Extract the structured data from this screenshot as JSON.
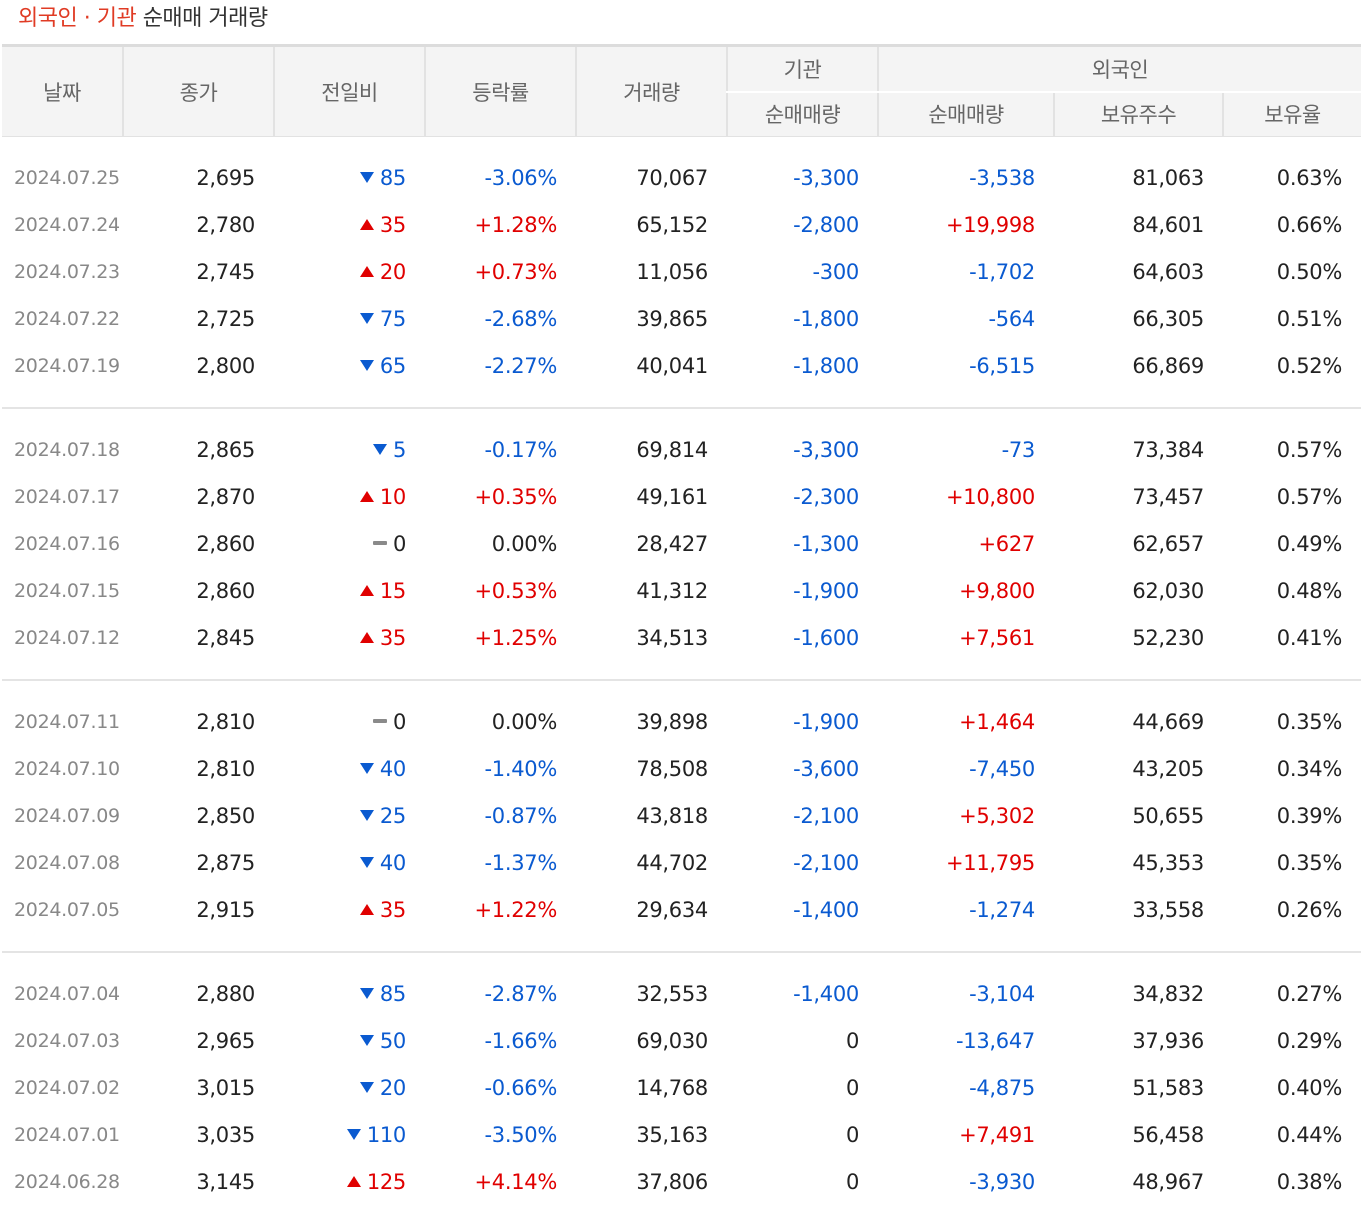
{
  "title": {
    "highlight": "외국인 · 기관",
    "rest": "순매매 거래량"
  },
  "headers": {
    "date": "날짜",
    "close": "종가",
    "change": "전일비",
    "rate": "등락률",
    "volume": "거래량",
    "inst_group": "기관",
    "inst_net": "순매매량",
    "foreign_group": "외국인",
    "foreign_net": "순매매량",
    "foreign_holding": "보유주수",
    "foreign_ratio": "보유율"
  },
  "colors": {
    "up": "#e00000",
    "down": "#0a5ad0",
    "flat": "#8a8a8a"
  },
  "groups": [
    {
      "rows": [
        {
          "date": "2024.07.25",
          "close": "2,695",
          "dir": "down",
          "change": "85",
          "rate": "-3.06%",
          "volume": "70,067",
          "inst": "-3,300",
          "foreign": "-3,538",
          "holding": "81,063",
          "ratio": "0.63%"
        },
        {
          "date": "2024.07.24",
          "close": "2,780",
          "dir": "up",
          "change": "35",
          "rate": "+1.28%",
          "volume": "65,152",
          "inst": "-2,800",
          "foreign": "+19,998",
          "holding": "84,601",
          "ratio": "0.66%"
        },
        {
          "date": "2024.07.23",
          "close": "2,745",
          "dir": "up",
          "change": "20",
          "rate": "+0.73%",
          "volume": "11,056",
          "inst": "-300",
          "foreign": "-1,702",
          "holding": "64,603",
          "ratio": "0.50%"
        },
        {
          "date": "2024.07.22",
          "close": "2,725",
          "dir": "down",
          "change": "75",
          "rate": "-2.68%",
          "volume": "39,865",
          "inst": "-1,800",
          "foreign": "-564",
          "holding": "66,305",
          "ratio": "0.51%"
        },
        {
          "date": "2024.07.19",
          "close": "2,800",
          "dir": "down",
          "change": "65",
          "rate": "-2.27%",
          "volume": "40,041",
          "inst": "-1,800",
          "foreign": "-6,515",
          "holding": "66,869",
          "ratio": "0.52%"
        }
      ]
    },
    {
      "rows": [
        {
          "date": "2024.07.18",
          "close": "2,865",
          "dir": "down",
          "change": "5",
          "rate": "-0.17%",
          "volume": "69,814",
          "inst": "-3,300",
          "foreign": "-73",
          "holding": "73,384",
          "ratio": "0.57%"
        },
        {
          "date": "2024.07.17",
          "close": "2,870",
          "dir": "up",
          "change": "10",
          "rate": "+0.35%",
          "volume": "49,161",
          "inst": "-2,300",
          "foreign": "+10,800",
          "holding": "73,457",
          "ratio": "0.57%"
        },
        {
          "date": "2024.07.16",
          "close": "2,860",
          "dir": "flat",
          "change": "0",
          "rate": "0.00%",
          "volume": "28,427",
          "inst": "-1,300",
          "foreign": "+627",
          "holding": "62,657",
          "ratio": "0.49%"
        },
        {
          "date": "2024.07.15",
          "close": "2,860",
          "dir": "up",
          "change": "15",
          "rate": "+0.53%",
          "volume": "41,312",
          "inst": "-1,900",
          "foreign": "+9,800",
          "holding": "62,030",
          "ratio": "0.48%"
        },
        {
          "date": "2024.07.12",
          "close": "2,845",
          "dir": "up",
          "change": "35",
          "rate": "+1.25%",
          "volume": "34,513",
          "inst": "-1,600",
          "foreign": "+7,561",
          "holding": "52,230",
          "ratio": "0.41%"
        }
      ]
    },
    {
      "rows": [
        {
          "date": "2024.07.11",
          "close": "2,810",
          "dir": "flat",
          "change": "0",
          "rate": "0.00%",
          "volume": "39,898",
          "inst": "-1,900",
          "foreign": "+1,464",
          "holding": "44,669",
          "ratio": "0.35%"
        },
        {
          "date": "2024.07.10",
          "close": "2,810",
          "dir": "down",
          "change": "40",
          "rate": "-1.40%",
          "volume": "78,508",
          "inst": "-3,600",
          "foreign": "-7,450",
          "holding": "43,205",
          "ratio": "0.34%"
        },
        {
          "date": "2024.07.09",
          "close": "2,850",
          "dir": "down",
          "change": "25",
          "rate": "-0.87%",
          "volume": "43,818",
          "inst": "-2,100",
          "foreign": "+5,302",
          "holding": "50,655",
          "ratio": "0.39%"
        },
        {
          "date": "2024.07.08",
          "close": "2,875",
          "dir": "down",
          "change": "40",
          "rate": "-1.37%",
          "volume": "44,702",
          "inst": "-2,100",
          "foreign": "+11,795",
          "holding": "45,353",
          "ratio": "0.35%"
        },
        {
          "date": "2024.07.05",
          "close": "2,915",
          "dir": "up",
          "change": "35",
          "rate": "+1.22%",
          "volume": "29,634",
          "inst": "-1,400",
          "foreign": "-1,274",
          "holding": "33,558",
          "ratio": "0.26%"
        }
      ]
    },
    {
      "rows": [
        {
          "date": "2024.07.04",
          "close": "2,880",
          "dir": "down",
          "change": "85",
          "rate": "-2.87%",
          "volume": "32,553",
          "inst": "-1,400",
          "foreign": "-3,104",
          "holding": "34,832",
          "ratio": "0.27%"
        },
        {
          "date": "2024.07.03",
          "close": "2,965",
          "dir": "down",
          "change": "50",
          "rate": "-1.66%",
          "volume": "69,030",
          "inst": "0",
          "foreign": "-13,647",
          "holding": "37,936",
          "ratio": "0.29%"
        },
        {
          "date": "2024.07.02",
          "close": "3,015",
          "dir": "down",
          "change": "20",
          "rate": "-0.66%",
          "volume": "14,768",
          "inst": "0",
          "foreign": "-4,875",
          "holding": "51,583",
          "ratio": "0.40%"
        },
        {
          "date": "2024.07.01",
          "close": "3,035",
          "dir": "down",
          "change": "110",
          "rate": "-3.50%",
          "volume": "35,163",
          "inst": "0",
          "foreign": "+7,491",
          "holding": "56,458",
          "ratio": "0.44%"
        },
        {
          "date": "2024.06.28",
          "close": "3,145",
          "dir": "up",
          "change": "125",
          "rate": "+4.14%",
          "volume": "37,806",
          "inst": "0",
          "foreign": "-3,930",
          "holding": "48,967",
          "ratio": "0.38%"
        }
      ]
    }
  ]
}
